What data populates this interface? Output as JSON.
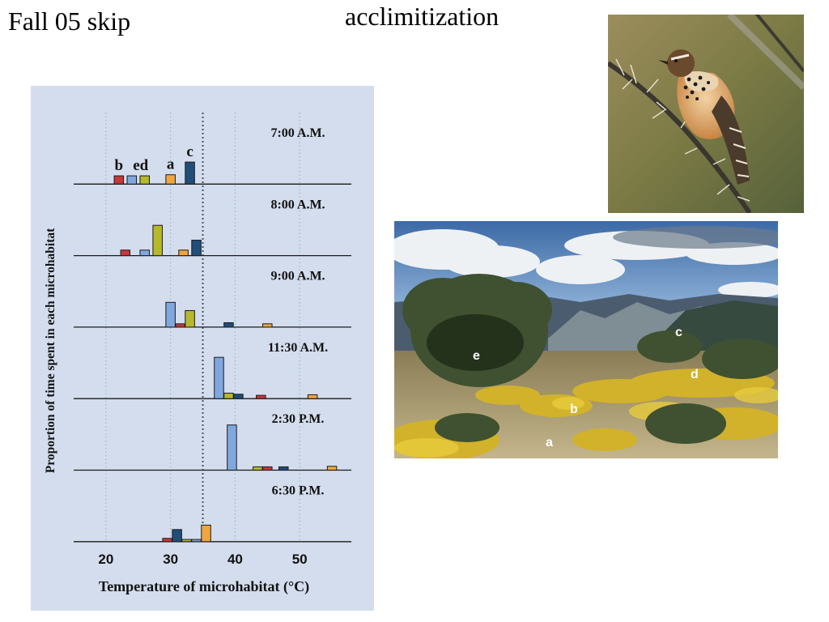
{
  "slide": {
    "left_title": "Fall 05 skip",
    "center_title": "acclimitization"
  },
  "chart_data": {
    "type": "bar",
    "xlabel": "Temperature of microhabitat (°C)",
    "ylabel": "Proportion of time spent in each microhabitat",
    "xlim": [
      15,
      58
    ],
    "xticks": [
      20,
      30,
      40,
      50
    ],
    "reference_line_x": 35,
    "legend": [
      "b",
      "e",
      "d",
      "a",
      "c"
    ],
    "series_colors": {
      "b": "#c8373b",
      "e": "#7fa8de",
      "d": "#b6b82b",
      "a": "#f0a63e",
      "c": "#1f4e7a"
    },
    "panels": [
      {
        "time": "7:00 A.M.",
        "bars": [
          {
            "x": 22,
            "value": 0.15,
            "color": "#c8373b",
            "label": "b"
          },
          {
            "x": 24,
            "value": 0.15,
            "color": "#7fa8de",
            "label": ""
          },
          {
            "x": 26,
            "value": 0.15,
            "color": "#b6b82b",
            "label": "ed"
          },
          {
            "x": 30,
            "value": 0.17,
            "color": "#f0a63e",
            "label": "a"
          },
          {
            "x": 33,
            "value": 0.4,
            "color": "#1f4e7a",
            "label": "c"
          }
        ]
      },
      {
        "time": "8:00 A.M.",
        "bars": [
          {
            "x": 23,
            "value": 0.1,
            "color": "#c8373b"
          },
          {
            "x": 26,
            "value": 0.1,
            "color": "#7fa8de"
          },
          {
            "x": 28,
            "value": 0.55,
            "color": "#b6b82b"
          },
          {
            "x": 32,
            "value": 0.1,
            "color": "#f0a63e"
          },
          {
            "x": 34,
            "value": 0.28,
            "color": "#1f4e7a"
          }
        ]
      },
      {
        "time": "9:00 A.M.",
        "bars": [
          {
            "x": 30,
            "value": 0.45,
            "color": "#7fa8de"
          },
          {
            "x": 31.5,
            "value": 0.06,
            "color": "#c8373b"
          },
          {
            "x": 33,
            "value": 0.3,
            "color": "#b6b82b"
          },
          {
            "x": 39,
            "value": 0.08,
            "color": "#1f4e7a"
          },
          {
            "x": 45,
            "value": 0.06,
            "color": "#f0a63e"
          }
        ]
      },
      {
        "time": "11:30 A.M.",
        "bars": [
          {
            "x": 37.5,
            "value": 0.75,
            "color": "#7fa8de"
          },
          {
            "x": 39,
            "value": 0.1,
            "color": "#b6b82b"
          },
          {
            "x": 40.5,
            "value": 0.08,
            "color": "#1f4e7a"
          },
          {
            "x": 44,
            "value": 0.06,
            "color": "#c8373b"
          },
          {
            "x": 52,
            "value": 0.07,
            "color": "#f0a63e"
          }
        ]
      },
      {
        "time": "2:30 P.M.",
        "bars": [
          {
            "x": 39.5,
            "value": 0.82,
            "color": "#7fa8de"
          },
          {
            "x": 43.5,
            "value": 0.06,
            "color": "#b6b82b"
          },
          {
            "x": 45,
            "value": 0.06,
            "color": "#c8373b"
          },
          {
            "x": 47.5,
            "value": 0.06,
            "color": "#1f4e7a"
          },
          {
            "x": 55,
            "value": 0.07,
            "color": "#f0a63e"
          }
        ]
      },
      {
        "time": "6:30 P.M.",
        "bars": [
          {
            "x": 29.5,
            "value": 0.06,
            "color": "#c8373b"
          },
          {
            "x": 31,
            "value": 0.22,
            "color": "#1f4e7a"
          },
          {
            "x": 32.5,
            "value": 0.04,
            "color": "#b6b82b"
          },
          {
            "x": 34,
            "value": 0.04,
            "color": "#7fa8de"
          },
          {
            "x": 35.5,
            "value": 0.3,
            "color": "#f0a63e"
          }
        ]
      }
    ]
  },
  "desert_photo": {
    "labels": [
      "e",
      "c",
      "d",
      "b",
      "a"
    ]
  }
}
